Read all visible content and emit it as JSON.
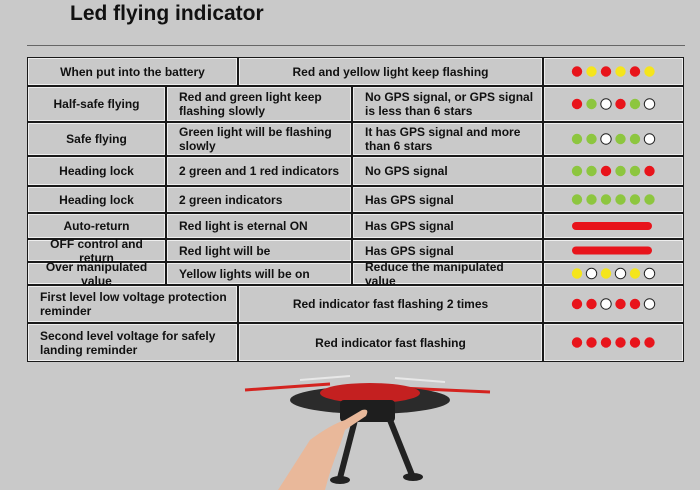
{
  "header": {
    "title": "Led flying indicator"
  },
  "table": {
    "rows": [
      {
        "cells": [
          "When put into the battery",
          "Red and yellow light keep flashing"
        ],
        "leds": [
          "#e8141b",
          "#f5e51c",
          "#e8141b",
          "#f5e51c",
          "#e8141b",
          "#f5e51c"
        ]
      },
      {
        "cells": [
          "Half-safe flying",
          "Red and green light keep flashing slowly",
          "No GPS signal, or GPS signal is less than 6 stars"
        ],
        "leds": [
          "#e8141b",
          "#8dc63f",
          null,
          "#e8141b",
          "#8dc63f",
          null
        ]
      },
      {
        "cells": [
          "Safe flying",
          "Green light will be flashing slowly",
          "It has GPS signal and more than 6 stars"
        ],
        "leds": [
          "#8dc63f",
          "#8dc63f",
          null,
          "#8dc63f",
          "#8dc63f",
          null
        ]
      },
      {
        "cells": [
          "Heading lock",
          "2 green and 1 red indicators",
          "No GPS signal"
        ],
        "leds": [
          "#8dc63f",
          "#8dc63f",
          "#e8141b",
          "#8dc63f",
          "#8dc63f",
          "#e8141b"
        ]
      },
      {
        "cells": [
          "Heading lock",
          "2 green indicators",
          "Has GPS signal"
        ],
        "leds": [
          "#8dc63f",
          "#8dc63f",
          "#8dc63f",
          "#8dc63f",
          "#8dc63f",
          "#8dc63f"
        ]
      },
      {
        "cells": [
          "Auto-return",
          "Red light is eternal ON",
          "Has GPS signal"
        ],
        "bar": "#e8141b"
      },
      {
        "cells": [
          "OFF control and return",
          "Red light will be",
          "Has GPS signal"
        ],
        "bar": "#e8141b"
      },
      {
        "cells": [
          "Over manipulated value",
          "Yellow lights will be on",
          "Reduce the manipulated value"
        ],
        "leds": [
          "#f5e51c",
          null,
          "#f5e51c",
          null,
          "#f5e51c",
          null
        ]
      },
      {
        "cells": [
          "First level low voltage protection reminder",
          "Red indicator fast flashing 2 times"
        ],
        "leds": [
          "#e8141b",
          "#e8141b",
          null,
          "#e8141b",
          "#e8141b",
          null
        ]
      },
      {
        "cells": [
          "Second level voltage  for safely landing reminder",
          "Red indicator fast flashing"
        ],
        "leds": [
          "#e8141b",
          "#e8141b",
          "#e8141b",
          "#e8141b",
          "#e8141b",
          "#e8141b"
        ]
      }
    ]
  }
}
